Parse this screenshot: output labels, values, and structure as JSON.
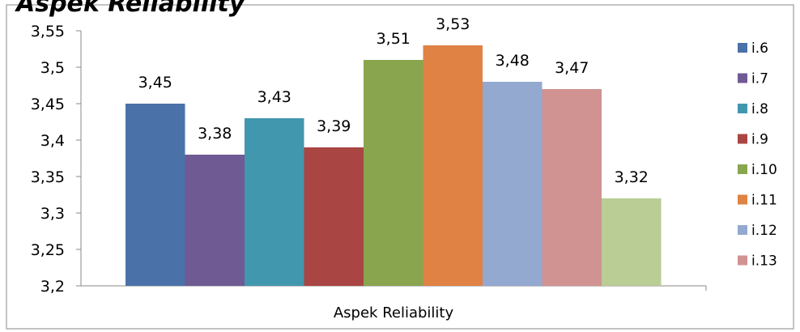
{
  "chart_data": {
    "type": "bar",
    "title": "",
    "xlabel": "Aspek Reliability",
    "ylabel": "",
    "ylim": [
      3.2,
      3.55
    ],
    "y_ticks": [
      "3,2",
      "3,25",
      "3,3",
      "3,35",
      "3,4",
      "3,45",
      "3,5",
      "3,55"
    ],
    "y_tick_values": [
      3.2,
      3.25,
      3.3,
      3.35,
      3.4,
      3.45,
      3.5,
      3.55
    ],
    "categories": [
      "Aspek Reliability"
    ],
    "grid": false,
    "legend_position": "right",
    "series": [
      {
        "name": "i.6",
        "values": [
          3.45
        ],
        "label": "3,45",
        "color": "#4a72a8"
      },
      {
        "name": "i.7",
        "values": [
          3.38
        ],
        "label": "3,38",
        "color": "#705a94"
      },
      {
        "name": "i.8",
        "values": [
          3.43
        ],
        "label": "3,43",
        "color": "#4197ae"
      },
      {
        "name": "i.9",
        "values": [
          3.39
        ],
        "label": "3,39",
        "color": "#a94543"
      },
      {
        "name": "i.10",
        "values": [
          3.51
        ],
        "label": "3,51",
        "color": "#89a54e"
      },
      {
        "name": "i.11",
        "values": [
          3.53
        ],
        "label": "3,53",
        "color": "#df8244"
      },
      {
        "name": "i.12",
        "values": [
          3.48
        ],
        "label": "3,48",
        "color": "#93a9d0"
      },
      {
        "name": "i.13",
        "values": [
          3.47
        ],
        "label": "3,47",
        "color": "#d09392"
      },
      {
        "name": "",
        "values": [
          3.32
        ],
        "label": "3,32",
        "color": "#b9cd95"
      }
    ]
  }
}
